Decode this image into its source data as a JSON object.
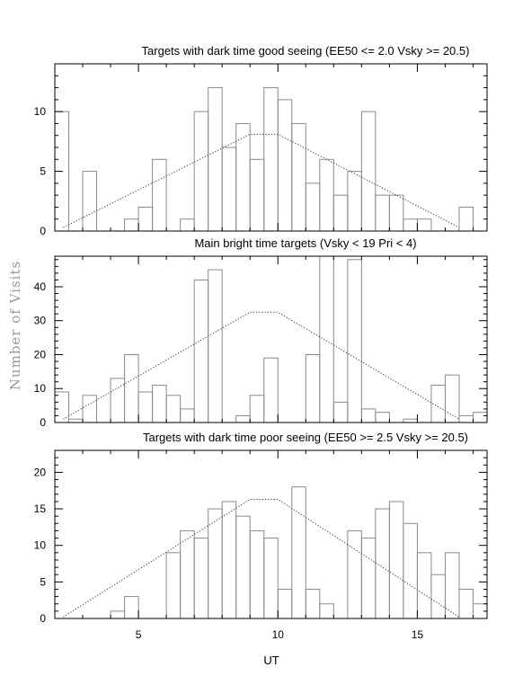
{
  "figure": {
    "xlabel": "UT",
    "ylabel": "Number of Visits"
  },
  "chart_data": [
    {
      "type": "bar",
      "title": "Targets with dark time good seeing (EE50 <= 2.0 Vsky >= 20.5)",
      "xlim": [
        2,
        17.5
      ],
      "ylim": [
        0,
        14
      ],
      "xticks": [
        5,
        10,
        15
      ],
      "yticks": [
        0,
        5,
        10
      ],
      "bin_width": 0.5,
      "bin_starts": [
        2.0,
        2.5,
        3.0,
        3.5,
        4.0,
        4.5,
        5.0,
        5.5,
        6.0,
        6.5,
        7.0,
        7.5,
        8.0,
        8.5,
        9.0,
        9.5,
        10.0,
        10.5,
        11.0,
        11.5,
        12.0,
        12.5,
        13.0,
        13.5,
        14.0,
        14.5,
        15.0,
        15.5,
        16.0,
        16.5,
        17.0
      ],
      "values": [
        10,
        0,
        5,
        0,
        0,
        1,
        2,
        6,
        0,
        1,
        10,
        12,
        7,
        9,
        6,
        12,
        11,
        9,
        4,
        6,
        3,
        5,
        10,
        3,
        3,
        1,
        1,
        0,
        0,
        2,
        0
      ],
      "model_line": {
        "x": [
          2.3,
          9.0,
          10.0,
          16.5
        ],
        "y": [
          0.3,
          8.1,
          8.1,
          0.3
        ]
      }
    },
    {
      "type": "bar",
      "title": "Main bright time targets (Vsky < 19 Pri < 4)",
      "xlim": [
        2,
        17.5
      ],
      "ylim": [
        0,
        49
      ],
      "xticks": [
        5,
        10,
        15
      ],
      "yticks": [
        0,
        10,
        20,
        30,
        40
      ],
      "bin_width": 0.5,
      "bin_starts": [
        2.0,
        2.5,
        3.0,
        3.5,
        4.0,
        4.5,
        5.0,
        5.5,
        6.0,
        6.5,
        7.0,
        7.5,
        8.0,
        8.5,
        9.0,
        9.5,
        10.0,
        10.5,
        11.0,
        11.5,
        12.0,
        12.5,
        13.0,
        13.5,
        14.0,
        14.5,
        15.0,
        15.5,
        16.0,
        16.5,
        17.0
      ],
      "values": [
        9,
        1,
        8,
        0,
        13,
        20,
        9,
        11,
        8,
        4,
        42,
        45,
        0,
        2,
        8,
        19,
        0,
        0,
        20,
        49,
        6,
        48,
        4,
        3,
        0,
        1,
        0,
        11,
        14,
        2,
        3
      ],
      "model_line": {
        "x": [
          2.3,
          9.0,
          10.0,
          16.5
        ],
        "y": [
          1,
          32.5,
          32.5,
          1
        ]
      }
    },
    {
      "type": "bar",
      "title": "Targets with dark time poor seeing (EE50 >= 2.5 Vsky >= 20.5)",
      "xlim": [
        2,
        17.5
      ],
      "ylim": [
        0,
        23
      ],
      "xticks": [
        5,
        10,
        15
      ],
      "yticks": [
        0,
        5,
        10,
        15,
        20
      ],
      "bin_width": 0.5,
      "bin_starts": [
        2.0,
        2.5,
        3.0,
        3.5,
        4.0,
        4.5,
        5.0,
        5.5,
        6.0,
        6.5,
        7.0,
        7.5,
        8.0,
        8.5,
        9.0,
        9.5,
        10.0,
        10.5,
        11.0,
        11.5,
        12.0,
        12.5,
        13.0,
        13.5,
        14.0,
        14.5,
        15.0,
        15.5,
        16.0,
        16.5,
        17.0
      ],
      "values": [
        0,
        0,
        0,
        0,
        1,
        3,
        0,
        0,
        9,
        12,
        11,
        15,
        16,
        14,
        12,
        11,
        4,
        18,
        4,
        2,
        0,
        12,
        11,
        15,
        16,
        13,
        9,
        6,
        9,
        4,
        2
      ],
      "model_line": {
        "x": [
          2.3,
          9.0,
          10.0,
          16.5
        ],
        "y": [
          0.2,
          16.3,
          16.3,
          0.2
        ]
      }
    }
  ]
}
